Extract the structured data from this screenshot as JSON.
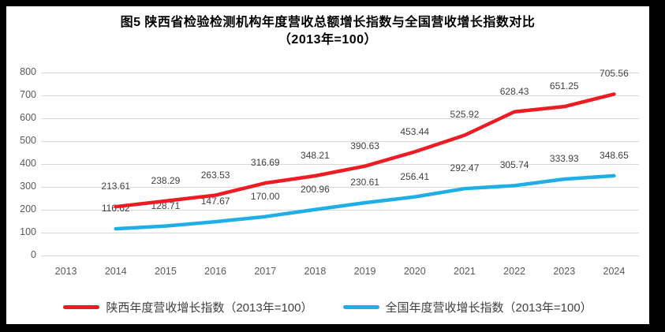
{
  "title": {
    "line1": "图5  陕西省检验检测机构年度营收总额增长指数与全国营收增长指数对比",
    "line2": "（2013年=100）"
  },
  "chart_data": {
    "type": "line",
    "categories": [
      "2013",
      "2014",
      "2015",
      "2016",
      "2017",
      "2018",
      "2019",
      "2020",
      "2021",
      "2022",
      "2023",
      "2024"
    ],
    "series": [
      {
        "name": "陕西年度营收增长指数（2013年=100）",
        "color": "#ec1c24",
        "start_category": "2014",
        "values": [
          213.61,
          238.29,
          263.53,
          316.69,
          348.21,
          390.63,
          453.44,
          525.92,
          628.43,
          651.25,
          705.56
        ],
        "labels": [
          "213.61",
          "238.29",
          "263.53",
          "316.69",
          "348.21",
          "390.63",
          "453.44",
          "525.92",
          "628.43",
          "651.25",
          "705.56"
        ]
      },
      {
        "name": "全国年度营收增长指数（2013年=100）",
        "color": "#20aee6",
        "start_category": "2014",
        "values": [
          116.62,
          128.71,
          147.67,
          170.0,
          200.96,
          230.61,
          256.41,
          292.47,
          305.74,
          333.93,
          348.65
        ],
        "labels": [
          "116.62",
          "128.71",
          "147.67",
          "170.00",
          "200.96",
          "230.61",
          "256.41",
          "292.47",
          "305.74",
          "333.93",
          "348.65"
        ]
      }
    ],
    "ylim": [
      0,
      800
    ],
    "yticks": [
      0,
      100,
      200,
      300,
      400,
      500,
      600,
      700,
      800
    ],
    "grid": true,
    "legend_position": "bottom"
  },
  "colors": {
    "grid": "#d9d9d9",
    "axis_text": "#595959",
    "data_label_text": "#404040",
    "frame": "#000000",
    "background": "#ffffff"
  }
}
